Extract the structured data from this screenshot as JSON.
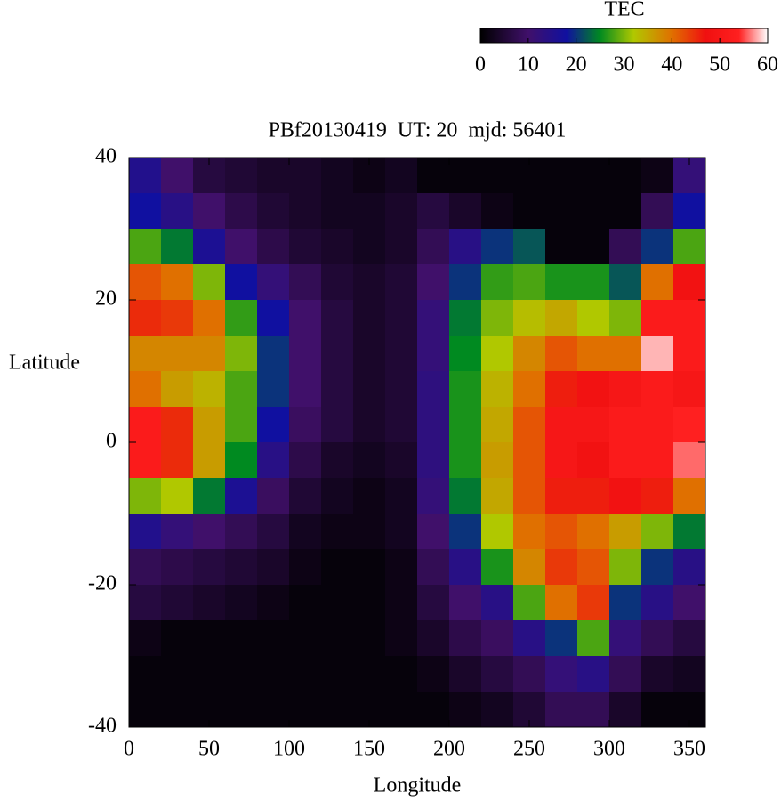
{
  "chart_data": {
    "type": "heatmap",
    "title": "PBf20130419  UT: 20  mjd: 56401",
    "xlabel": "Longitude",
    "ylabel": "Latitude",
    "colorbar_label": "TEC",
    "x": [
      10,
      30,
      50,
      70,
      90,
      110,
      130,
      150,
      170,
      190,
      210,
      230,
      250,
      270,
      290,
      310,
      330,
      350
    ],
    "y": [
      37.5,
      32.5,
      27.5,
      22.5,
      17.5,
      12.5,
      7.5,
      2.5,
      -2.5,
      -7.5,
      -12.5,
      -17.5,
      -22.5,
      -27.5,
      -32.5,
      -37.5
    ],
    "z": [
      [
        15,
        10,
        6,
        5,
        4,
        4,
        3,
        2,
        3,
        1,
        1,
        1,
        1,
        1,
        1,
        1,
        2,
        12
      ],
      [
        18,
        14,
        10,
        7,
        5,
        4,
        3,
        3,
        4,
        6,
        4,
        2,
        1,
        1,
        1,
        1,
        8,
        18
      ],
      [
        28,
        24,
        16,
        10,
        7,
        5,
        4,
        3,
        4,
        8,
        14,
        20,
        22,
        1,
        1,
        8,
        20,
        28
      ],
      [
        42,
        40,
        30,
        18,
        12,
        8,
        5,
        4,
        5,
        10,
        20,
        27,
        28,
        26,
        26,
        22,
        40,
        48
      ],
      [
        45,
        44,
        40,
        27,
        18,
        10,
        6,
        4,
        5,
        12,
        24,
        30,
        33,
        35,
        32,
        30,
        52,
        52
      ],
      [
        38,
        38,
        38,
        30,
        20,
        10,
        6,
        4,
        5,
        12,
        25,
        32,
        38,
        42,
        40,
        40,
        58,
        52
      ],
      [
        40,
        36,
        34,
        28,
        20,
        10,
        6,
        4,
        5,
        13,
        26,
        34,
        40,
        46,
        48,
        50,
        52,
        50
      ],
      [
        52,
        45,
        36,
        28,
        18,
        9,
        6,
        4,
        5,
        13,
        26,
        35,
        42,
        50,
        50,
        52,
        52,
        54
      ],
      [
        52,
        45,
        36,
        25,
        14,
        7,
        4,
        3,
        4,
        13,
        26,
        36,
        42,
        50,
        48,
        52,
        52,
        56
      ],
      [
        30,
        32,
        24,
        16,
        9,
        5,
        3,
        2,
        3,
        12,
        24,
        35,
        42,
        46,
        46,
        48,
        46,
        40
      ],
      [
        15,
        12,
        10,
        8,
        6,
        3,
        2,
        2,
        3,
        10,
        20,
        32,
        40,
        42,
        40,
        36,
        30,
        24
      ],
      [
        8,
        7,
        6,
        5,
        4,
        2,
        1,
        1,
        2,
        8,
        14,
        26,
        38,
        44,
        42,
        30,
        20,
        14
      ],
      [
        6,
        5,
        4,
        3,
        2,
        1,
        1,
        1,
        2,
        6,
        10,
        14,
        28,
        40,
        44,
        20,
        14,
        10
      ],
      [
        2,
        1,
        1,
        1,
        1,
        1,
        1,
        1,
        2,
        4,
        7,
        9,
        14,
        20,
        28,
        12,
        8,
        6
      ],
      [
        1,
        1,
        1,
        1,
        1,
        1,
        1,
        1,
        1,
        2,
        4,
        6,
        8,
        12,
        14,
        8,
        4,
        3
      ],
      [
        1,
        1,
        1,
        1,
        1,
        1,
        1,
        1,
        1,
        1,
        2,
        3,
        5,
        8,
        8,
        4,
        1,
        1
      ]
    ],
    "xlim": [
      0,
      360
    ],
    "xticks": [
      0,
      50,
      100,
      150,
      200,
      250,
      300,
      350
    ],
    "ylim": [
      -40,
      40
    ],
    "yticks": [
      -40,
      -20,
      0,
      20,
      40
    ],
    "clim": [
      0,
      60
    ],
    "cticks": [
      0,
      10,
      20,
      30,
      40,
      50,
      60
    ],
    "colorscale": [
      [
        0,
        "#000000"
      ],
      [
        10,
        "#40106a"
      ],
      [
        18,
        "#1010a0"
      ],
      [
        25,
        "#008a20"
      ],
      [
        32,
        "#b0c800"
      ],
      [
        40,
        "#e07000"
      ],
      [
        47,
        "#f01010"
      ],
      [
        54,
        "#ff2020"
      ],
      [
        60,
        "#ffffff"
      ]
    ]
  }
}
